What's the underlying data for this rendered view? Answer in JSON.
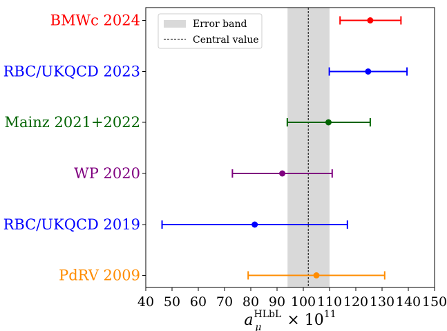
{
  "colors": {
    "band": "#d9d9d9",
    "axis": "#000000"
  },
  "chart_data": {
    "type": "scatter",
    "orientation": "horizontal-errorbar",
    "xlabel_parts": {
      "base": "a",
      "sub": "μ",
      "sup": "HLbL",
      "times": "×",
      "ten": "10",
      "exp": "11"
    },
    "xlim": [
      40,
      150
    ],
    "xticks": [
      40,
      50,
      60,
      70,
      80,
      90,
      100,
      110,
      120,
      130,
      140,
      150
    ],
    "grid": false,
    "legend_position": "top-left",
    "error_band": {
      "label": "Error band",
      "range": [
        94,
        110
      ]
    },
    "central_value": {
      "label": "Central value",
      "value": 101.9
    },
    "series": [
      {
        "name": "BMWc 2024",
        "value": 125.5,
        "err_low": 114.0,
        "err_high": 137.2,
        "color": "#ff0000"
      },
      {
        "name": "RBC/UKQCD 2023",
        "value": 124.7,
        "err_low": 109.9,
        "err_high": 139.5,
        "color": "#0000ff"
      },
      {
        "name": "Mainz 2021+2022",
        "value": 109.6,
        "err_low": 93.9,
        "err_high": 125.5,
        "color": "#006400"
      },
      {
        "name": "WP 2020",
        "value": 92.0,
        "err_low": 73.0,
        "err_high": 111.0,
        "color": "#800080"
      },
      {
        "name": "RBC/UKQCD 2019",
        "value": 81.5,
        "err_low": 46.2,
        "err_high": 116.8,
        "color": "#0000ff"
      },
      {
        "name": "PdRV 2009",
        "value": 105.0,
        "err_low": 79.0,
        "err_high": 131.0,
        "color": "#ff8c00"
      }
    ]
  }
}
